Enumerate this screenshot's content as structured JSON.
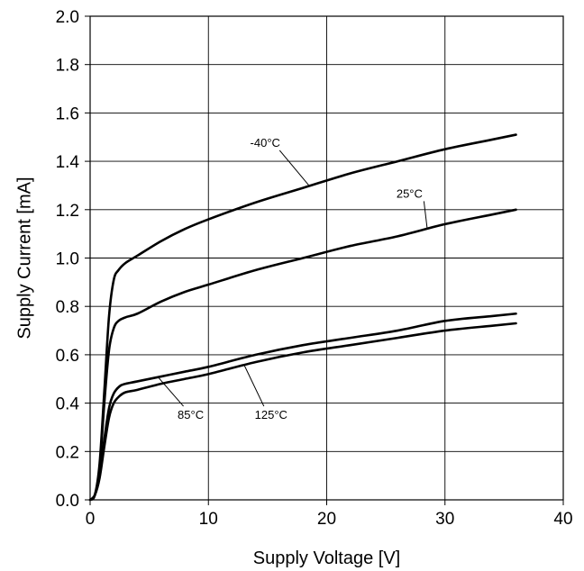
{
  "chart_data": {
    "type": "line",
    "xlabel": "Supply Voltage [V]",
    "ylabel": "Supply Current [mA]",
    "xlim": [
      0,
      40
    ],
    "ylim": [
      0,
      2.0
    ],
    "xticks": [
      0,
      10,
      20,
      30,
      40
    ],
    "yticks": [
      0.0,
      0.2,
      0.4,
      0.6,
      0.8,
      1.0,
      1.2,
      1.4,
      1.6,
      1.8,
      2.0
    ],
    "xtick_labels": [
      "0",
      "10",
      "20",
      "30",
      "40"
    ],
    "ytick_labels": [
      "0.0",
      "0.2",
      "0.4",
      "0.6",
      "0.8",
      "1.0",
      "1.2",
      "1.4",
      "1.6",
      "1.8",
      "2.0"
    ],
    "grid": true,
    "series": [
      {
        "name": "-40°C",
        "x": [
          0,
          0.4,
          0.8,
          1.2,
          1.6,
          2.0,
          2.4,
          3.0,
          4.0,
          6.0,
          8.0,
          10.0,
          14.0,
          18.0,
          22.0,
          26.0,
          30.0,
          34.0,
          36.0
        ],
        "y": [
          0.0,
          0.02,
          0.15,
          0.45,
          0.76,
          0.91,
          0.95,
          0.98,
          1.01,
          1.07,
          1.12,
          1.16,
          1.23,
          1.29,
          1.35,
          1.4,
          1.45,
          1.49,
          1.51
        ]
      },
      {
        "name": "25°C",
        "x": [
          0,
          0.4,
          0.8,
          1.2,
          1.6,
          2.0,
          2.4,
          3.0,
          4.0,
          6.0,
          8.0,
          10.0,
          14.0,
          18.0,
          22.0,
          26.0,
          30.0,
          34.0,
          36.0
        ],
        "y": [
          0.0,
          0.02,
          0.13,
          0.4,
          0.62,
          0.71,
          0.74,
          0.755,
          0.77,
          0.82,
          0.86,
          0.89,
          0.95,
          1.0,
          1.05,
          1.09,
          1.14,
          1.18,
          1.2
        ]
      },
      {
        "name": "85°C",
        "x": [
          0,
          0.4,
          0.8,
          1.2,
          1.6,
          2.0,
          2.5,
          3.0,
          4.0,
          6.0,
          8.0,
          10.0,
          14.0,
          18.0,
          22.0,
          26.0,
          30.0,
          34.0,
          36.0
        ],
        "y": [
          0.0,
          0.02,
          0.1,
          0.25,
          0.38,
          0.44,
          0.47,
          0.48,
          0.49,
          0.51,
          0.53,
          0.55,
          0.6,
          0.64,
          0.67,
          0.7,
          0.74,
          0.76,
          0.77
        ]
      },
      {
        "name": "125°C",
        "x": [
          0,
          0.4,
          0.8,
          1.2,
          1.6,
          2.0,
          2.5,
          3.0,
          4.0,
          6.0,
          8.0,
          10.0,
          14.0,
          18.0,
          22.0,
          26.0,
          30.0,
          34.0,
          36.0
        ],
        "y": [
          0.0,
          0.02,
          0.09,
          0.22,
          0.34,
          0.4,
          0.43,
          0.445,
          0.455,
          0.48,
          0.5,
          0.52,
          0.57,
          0.61,
          0.64,
          0.67,
          0.7,
          0.72,
          0.73
        ]
      }
    ],
    "annotations": [
      {
        "text": "-40°C",
        "series": "-40°C",
        "label_x": 14.8,
        "label_y": 1.46,
        "pointer_x": 18.5,
        "pointer_y": 1.3
      },
      {
        "text": "25°C",
        "series": "25°C",
        "label_x": 27.0,
        "label_y": 1.25,
        "pointer_x": 28.5,
        "pointer_y": 1.12
      },
      {
        "text": "85°C",
        "series": "85°C",
        "label_x": 8.5,
        "label_y": 0.335,
        "pointer_x": 5.7,
        "pointer_y": 0.51
      },
      {
        "text": "125°C",
        "series": "125°C",
        "label_x": 15.3,
        "label_y": 0.335,
        "pointer_x": 13.0,
        "pointer_y": 0.56
      }
    ]
  }
}
